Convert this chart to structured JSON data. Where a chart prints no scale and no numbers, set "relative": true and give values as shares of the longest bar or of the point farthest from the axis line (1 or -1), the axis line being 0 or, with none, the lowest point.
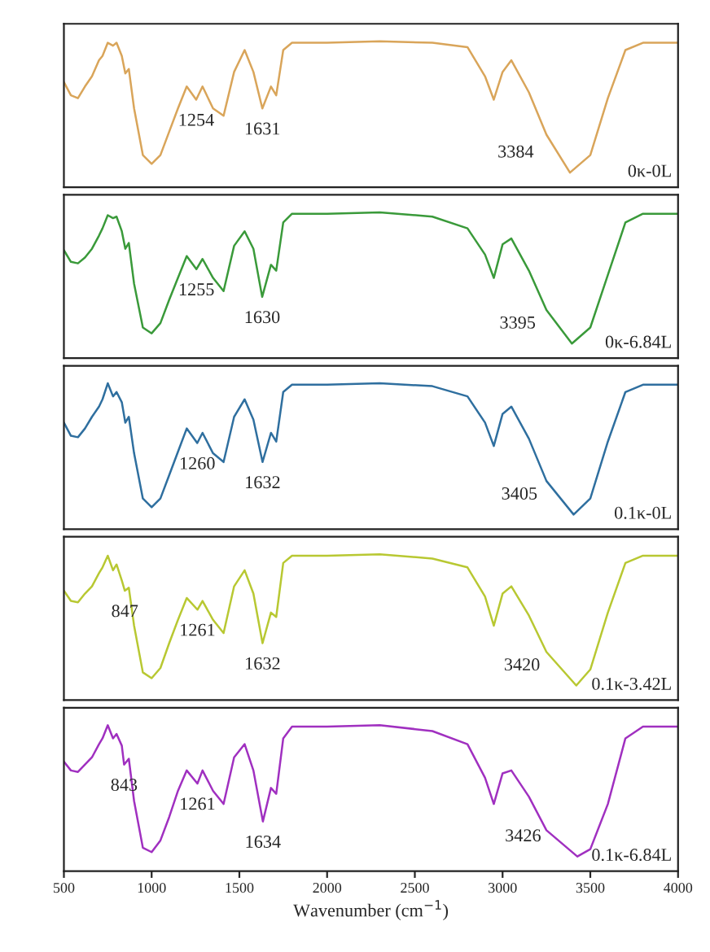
{
  "chart_data": [
    {
      "type": "line",
      "relative": true,
      "xlim": [
        500,
        4000
      ],
      "xticks": [
        500,
        1000,
        1500,
        2000,
        2500,
        3000,
        3500,
        4000
      ],
      "tick_labels": false,
      "x": [
        500,
        540,
        580,
        620,
        660,
        700,
        720,
        750,
        780,
        800,
        830,
        850,
        870,
        900,
        950,
        1000,
        1050,
        1100,
        1150,
        1200,
        1254,
        1290,
        1350,
        1410,
        1470,
        1530,
        1580,
        1631,
        1680,
        1710,
        1750,
        1800,
        2000,
        2300,
        2600,
        2800,
        2900,
        2950,
        3000,
        3050,
        3150,
        3250,
        3384,
        3500,
        3600,
        3700,
        3800,
        4000
      ],
      "series": [
        {
          "name": "0κ-0L",
          "color": "#d9a55a",
          "values": [
            0.72,
            0.63,
            0.61,
            0.69,
            0.76,
            0.87,
            0.9,
            0.99,
            0.97,
            0.99,
            0.9,
            0.78,
            0.81,
            0.54,
            0.22,
            0.16,
            0.22,
            0.38,
            0.54,
            0.69,
            0.6,
            0.69,
            0.54,
            0.49,
            0.79,
            0.94,
            0.79,
            0.54,
            0.69,
            0.63,
            0.94,
            0.99,
            0.99,
            1.0,
            0.99,
            0.96,
            0.76,
            0.6,
            0.79,
            0.87,
            0.65,
            0.36,
            0.1,
            0.22,
            0.61,
            0.94,
            0.99,
            0.99
          ]
        }
      ],
      "annotations": [
        {
          "text": "1254",
          "x": 1254,
          "y": 0.6
        },
        {
          "text": "1631",
          "x": 1631,
          "y": 0.54
        },
        {
          "text": "3384",
          "x": 3384,
          "y": 0.1
        }
      ]
    },
    {
      "type": "line",
      "relative": true,
      "xlim": [
        500,
        4000
      ],
      "xticks": [
        500,
        1000,
        1500,
        2000,
        2500,
        3000,
        3500,
        4000
      ],
      "tick_labels": false,
      "x": [
        500,
        540,
        580,
        620,
        660,
        700,
        720,
        750,
        780,
        800,
        830,
        850,
        870,
        900,
        950,
        1000,
        1050,
        1100,
        1150,
        1200,
        1255,
        1290,
        1350,
        1410,
        1470,
        1530,
        1580,
        1630,
        1680,
        1710,
        1750,
        1800,
        2000,
        2300,
        2600,
        2800,
        2900,
        2950,
        3000,
        3050,
        3150,
        3250,
        3395,
        3500,
        3600,
        3700,
        3800,
        4000
      ],
      "series": [
        {
          "name": "0κ-6.84L",
          "color": "#3a9a3a",
          "values": [
            0.74,
            0.66,
            0.65,
            0.69,
            0.75,
            0.84,
            0.89,
            0.98,
            0.96,
            0.97,
            0.87,
            0.75,
            0.79,
            0.51,
            0.21,
            0.17,
            0.24,
            0.4,
            0.55,
            0.7,
            0.61,
            0.68,
            0.55,
            0.46,
            0.77,
            0.87,
            0.75,
            0.42,
            0.64,
            0.6,
            0.93,
            0.99,
            0.99,
            1.0,
            0.97,
            0.89,
            0.71,
            0.55,
            0.78,
            0.82,
            0.6,
            0.33,
            0.1,
            0.21,
            0.57,
            0.93,
            0.99,
            0.99
          ]
        }
      ],
      "annotations": [
        {
          "text": "1255",
          "x": 1255,
          "y": 0.61
        },
        {
          "text": "1630",
          "x": 1630,
          "y": 0.42
        },
        {
          "text": "3395",
          "x": 3395,
          "y": 0.1
        }
      ]
    },
    {
      "type": "line",
      "relative": true,
      "xlim": [
        500,
        4000
      ],
      "xticks": [
        500,
        1000,
        1500,
        2000,
        2500,
        3000,
        3500,
        4000
      ],
      "tick_labels": false,
      "x": [
        500,
        540,
        580,
        620,
        660,
        700,
        720,
        750,
        780,
        800,
        830,
        850,
        870,
        900,
        950,
        1000,
        1050,
        1100,
        1150,
        1200,
        1260,
        1290,
        1350,
        1410,
        1470,
        1530,
        1580,
        1632,
        1680,
        1710,
        1750,
        1800,
        2000,
        2300,
        2600,
        2800,
        2900,
        2950,
        3000,
        3050,
        3150,
        3250,
        3405,
        3500,
        3600,
        3700,
        3800,
        4000
      ],
      "series": [
        {
          "name": "0.1κ-0L",
          "color": "#2f6f9f",
          "values": [
            0.73,
            0.64,
            0.63,
            0.69,
            0.77,
            0.84,
            0.89,
            1.0,
            0.91,
            0.94,
            0.87,
            0.73,
            0.77,
            0.52,
            0.21,
            0.15,
            0.21,
            0.37,
            0.53,
            0.69,
            0.59,
            0.66,
            0.52,
            0.46,
            0.77,
            0.89,
            0.75,
            0.46,
            0.66,
            0.6,
            0.94,
            0.99,
            0.99,
            1.0,
            0.98,
            0.91,
            0.73,
            0.57,
            0.79,
            0.84,
            0.62,
            0.33,
            0.1,
            0.21,
            0.6,
            0.94,
            0.99,
            0.99
          ]
        }
      ],
      "annotations": [
        {
          "text": "1260",
          "x": 1260,
          "y": 0.59
        },
        {
          "text": "1632",
          "x": 1632,
          "y": 0.46
        },
        {
          "text": "3405",
          "x": 3405,
          "y": 0.1
        }
      ]
    },
    {
      "type": "line",
      "relative": true,
      "xlim": [
        500,
        4000
      ],
      "xticks": [
        500,
        1000,
        1500,
        2000,
        2500,
        3000,
        3500,
        4000
      ],
      "tick_labels": false,
      "x": [
        500,
        540,
        580,
        620,
        660,
        700,
        720,
        750,
        780,
        800,
        830,
        847,
        870,
        900,
        950,
        1000,
        1050,
        1100,
        1150,
        1200,
        1261,
        1290,
        1350,
        1410,
        1470,
        1530,
        1580,
        1632,
        1680,
        1710,
        1750,
        1800,
        2000,
        2300,
        2600,
        2800,
        2900,
        2950,
        3000,
        3050,
        3150,
        3250,
        3420,
        3500,
        3600,
        3700,
        3800,
        4000
      ],
      "series": [
        {
          "name": "0.1κ-3.42L",
          "color": "#b8c832",
          "values": [
            0.75,
            0.68,
            0.67,
            0.73,
            0.78,
            0.87,
            0.91,
            0.99,
            0.89,
            0.93,
            0.82,
            0.75,
            0.77,
            0.51,
            0.19,
            0.15,
            0.22,
            0.39,
            0.55,
            0.7,
            0.62,
            0.68,
            0.55,
            0.46,
            0.78,
            0.89,
            0.73,
            0.39,
            0.6,
            0.57,
            0.94,
            0.99,
            0.99,
            1.0,
            0.97,
            0.91,
            0.71,
            0.51,
            0.73,
            0.78,
            0.58,
            0.33,
            0.1,
            0.21,
            0.6,
            0.94,
            0.99,
            0.99
          ]
        }
      ],
      "annotations": [
        {
          "text": "847",
          "x": 847,
          "y": 0.75
        },
        {
          "text": "1261",
          "x": 1261,
          "y": 0.62
        },
        {
          "text": "1632",
          "x": 1632,
          "y": 0.39
        },
        {
          "text": "3420",
          "x": 3420,
          "y": 0.1
        }
      ]
    },
    {
      "type": "line",
      "relative": true,
      "xlim": [
        500,
        4000
      ],
      "xticks": [
        500,
        1000,
        1500,
        2000,
        2500,
        3000,
        3500,
        4000
      ],
      "tick_labels": "x",
      "xlabel": "Wavenumber (cm$^{−1}$)",
      "x": [
        500,
        540,
        580,
        620,
        660,
        700,
        720,
        750,
        780,
        800,
        830,
        843,
        870,
        900,
        950,
        1000,
        1050,
        1100,
        1150,
        1200,
        1261,
        1290,
        1350,
        1410,
        1470,
        1530,
        1580,
        1634,
        1680,
        1710,
        1750,
        1800,
        2000,
        2300,
        2600,
        2800,
        2900,
        2950,
        3000,
        3050,
        3150,
        3250,
        3426,
        3500,
        3600,
        3700,
        3800,
        4000
      ],
      "series": [
        {
          "name": "0.1κ-6.84L",
          "color": "#a030c0",
          "values": [
            0.75,
            0.69,
            0.68,
            0.73,
            0.78,
            0.87,
            0.91,
            1.0,
            0.91,
            0.94,
            0.86,
            0.73,
            0.77,
            0.48,
            0.16,
            0.13,
            0.21,
            0.37,
            0.55,
            0.69,
            0.6,
            0.69,
            0.55,
            0.46,
            0.78,
            0.87,
            0.69,
            0.34,
            0.57,
            0.53,
            0.91,
            0.99,
            0.99,
            1.0,
            0.96,
            0.87,
            0.64,
            0.46,
            0.67,
            0.69,
            0.51,
            0.28,
            0.1,
            0.15,
            0.46,
            0.91,
            0.99,
            0.99
          ]
        }
      ],
      "annotations": [
        {
          "text": "843",
          "x": 843,
          "y": 0.73
        },
        {
          "text": "1261",
          "x": 1261,
          "y": 0.6
        },
        {
          "text": "1634",
          "x": 1634,
          "y": 0.34
        },
        {
          "text": "3426",
          "x": 3426,
          "y": 0.1
        }
      ]
    }
  ]
}
